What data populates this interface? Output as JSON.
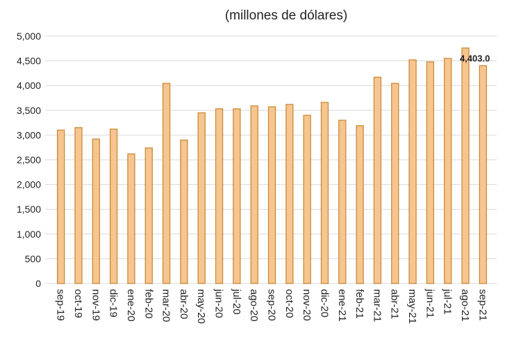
{
  "chart_data": {
    "type": "bar",
    "subtitle": "(millones de dólares)",
    "categories": [
      "sep-19",
      "oct-19",
      "nov-19",
      "dic-19",
      "ene-20",
      "feb-20",
      "mar-20",
      "abr-20",
      "may-20",
      "jun-20",
      "jul-20",
      "ago-20",
      "sep-20",
      "oct-20",
      "nov-20",
      "dic-20",
      "ene-21",
      "feb-21",
      "mar-21",
      "abr-21",
      "may-21",
      "jun-21",
      "jul-21",
      "ago-21",
      "sep-21"
    ],
    "values": [
      3100,
      3150,
      2920,
      3120,
      2620,
      2740,
      4045,
      2900,
      3450,
      3530,
      3530,
      3590,
      3570,
      3620,
      3400,
      3660,
      3300,
      3190,
      4170,
      4045,
      4520,
      4480,
      4550,
      4760,
      4403.0
    ],
    "value_labels": [
      null,
      null,
      null,
      null,
      null,
      null,
      null,
      null,
      null,
      null,
      null,
      null,
      null,
      null,
      null,
      null,
      null,
      null,
      null,
      null,
      null,
      null,
      null,
      null,
      "4,403.0"
    ],
    "color": "#f7c590",
    "edge_color": "#c98a38",
    "ylim": [
      0,
      5000
    ],
    "yticks": [
      0,
      500,
      {
        "value": 1000,
        "label": "1,000"
      },
      {
        "value": 1500,
        "label": "1,500"
      },
      {
        "value": 2000,
        "label": "2,000"
      },
      {
        "value": 2500,
        "label": "2,500"
      },
      {
        "value": 3000,
        "label": "3,000"
      },
      {
        "value": 3500,
        "label": "3,500"
      },
      {
        "value": 4000,
        "label": "4,000"
      },
      {
        "value": 4500,
        "label": "4,500"
      },
      {
        "value": 5000,
        "label": "5,000"
      }
    ],
    "grid": true
  }
}
